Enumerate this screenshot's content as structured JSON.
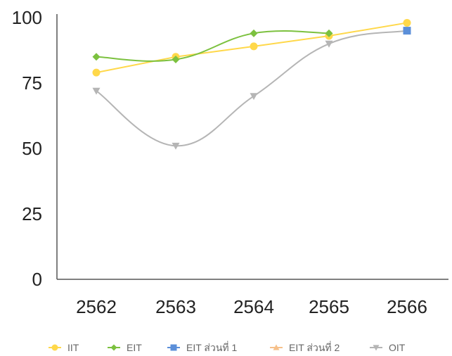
{
  "chart_data": {
    "type": "line",
    "title": "",
    "xlabel": "",
    "ylabel": "",
    "categories": [
      "2562",
      "2563",
      "2564",
      "2565",
      "2566"
    ],
    "ylim": [
      0,
      100
    ],
    "yticks": [
      "0",
      "25",
      "50",
      "75",
      "100"
    ],
    "grid": false,
    "legend_position": "bottom",
    "series": [
      {
        "name": "IIT",
        "color": "#ffd84a",
        "marker": "circle",
        "curve": "straight",
        "values": [
          79,
          85,
          89,
          93,
          98
        ]
      },
      {
        "name": "EIT",
        "color": "#7cc13f",
        "marker": "diamond",
        "curve": "smooth",
        "values": [
          85,
          84,
          94,
          94,
          null
        ]
      },
      {
        "name": "EIT ส่วนที่ 1",
        "color": "#5b8fd9",
        "marker": "square",
        "curve": "straight",
        "values": [
          null,
          null,
          null,
          null,
          95
        ]
      },
      {
        "name": "EIT ส่วนที่ 2",
        "color": "#f6c08a",
        "marker": "triangle",
        "curve": "straight",
        "values": [
          null,
          null,
          null,
          null,
          null
        ]
      },
      {
        "name": "OIT",
        "color": "#b5b5b5",
        "marker": "triangle-down",
        "curve": "smooth",
        "values": [
          72,
          51,
          70,
          90,
          95
        ]
      }
    ]
  }
}
